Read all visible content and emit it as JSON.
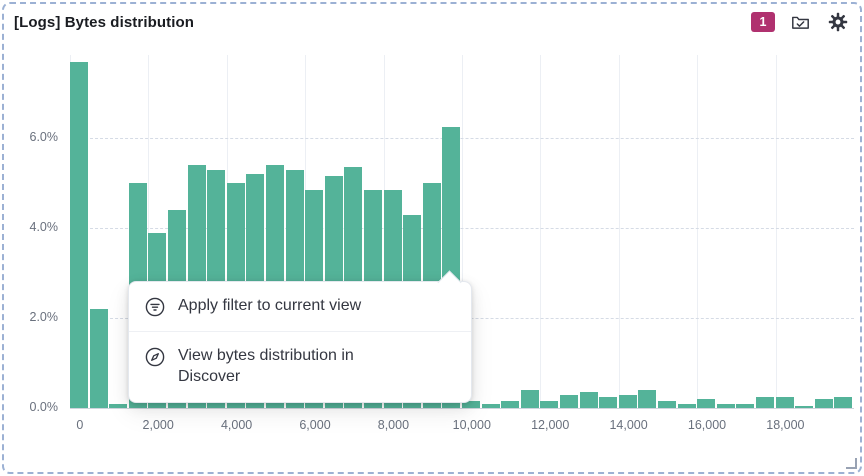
{
  "panel": {
    "title": "[Logs] Bytes distribution",
    "filter_badge_count": "1"
  },
  "context_menu": {
    "items": [
      {
        "icon": "filter-icon",
        "label": "Apply filter to current view"
      },
      {
        "icon": "compass-icon",
        "label": "View bytes distribution in Discover"
      }
    ]
  },
  "colors": {
    "bar": "#54B399",
    "badge": "#B0316F",
    "panel_border": "#9CB1D4"
  },
  "chart_data": {
    "type": "bar",
    "title": "[Logs] Bytes distribution",
    "xlabel": "",
    "ylabel": "",
    "y_unit": "%",
    "xlim": [
      0,
      20000
    ],
    "ylim": [
      0,
      7.85
    ],
    "bin_width": 500,
    "x_start": 0,
    "values": [
      7.7,
      2.2,
      0.1,
      5.0,
      3.9,
      4.4,
      5.4,
      5.3,
      5.0,
      5.2,
      5.4,
      5.3,
      4.85,
      5.15,
      5.35,
      4.85,
      4.85,
      4.3,
      5.0,
      6.25,
      0.15,
      0.1,
      0.15,
      0.4,
      0.15,
      0.3,
      0.35,
      0.25,
      0.3,
      0.4,
      0.15,
      0.1,
      0.2,
      0.1,
      0.1,
      0.25,
      0.25,
      0.05,
      0.2,
      0.25
    ],
    "x_ticks": [
      0,
      2000,
      4000,
      6000,
      8000,
      10000,
      12000,
      14000,
      16000,
      18000
    ],
    "x_tick_labels": [
      "0",
      "2,000",
      "4,000",
      "6,000",
      "8,000",
      "10,000",
      "12,000",
      "14,000",
      "16,000",
      "18,000"
    ],
    "y_ticks": [
      0,
      2,
      4,
      6
    ],
    "y_tick_labels": [
      "0.0%",
      "2.0%",
      "4.0%",
      "6.0%"
    ],
    "grid": true,
    "legend": false
  }
}
